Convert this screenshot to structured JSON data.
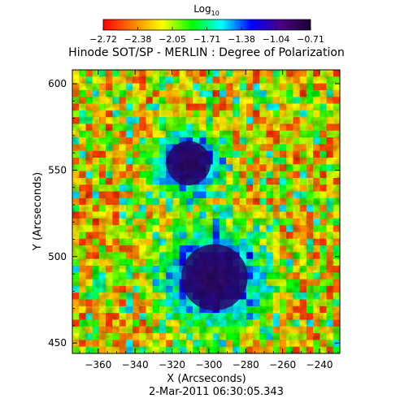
{
  "chart_data": {
    "type": "heatmap",
    "title": "Hinode SOT/SP - MERLIN : Degree of Polarization",
    "subtitle": "2-Mar-2011 06:30:05.343",
    "xlabel": "X (Arcseconds)",
    "ylabel": "Y (Arcseconds)",
    "xlim": [
      -374,
      -229
    ],
    "ylim": [
      444,
      608
    ],
    "x_ticks": [
      -360,
      -340,
      -320,
      -300,
      -280,
      -260,
      -240
    ],
    "y_ticks": [
      450,
      500,
      550,
      600
    ],
    "colorbar": {
      "label_main": "Log",
      "label_sub": "10",
      "tick_labels": [
        "-2.72",
        "-2.38",
        "-2.05",
        "-1.71",
        "-1.38",
        "-1.04",
        "-0.71"
      ],
      "range": [
        -2.72,
        -0.71
      ],
      "colors": [
        "#ff0000",
        "#ff7f00",
        "#ffff00",
        "#00ff00",
        "#00ffff",
        "#0000ff",
        "#4b0082",
        "#1a0033"
      ]
    },
    "features": [
      {
        "name": "sunspot-large",
        "x": -297,
        "y": 488,
        "radius": 18,
        "level": -0.71
      },
      {
        "name": "sunspot-small",
        "x": -311,
        "y": 554,
        "radius": 12,
        "level": -0.95
      }
    ]
  }
}
